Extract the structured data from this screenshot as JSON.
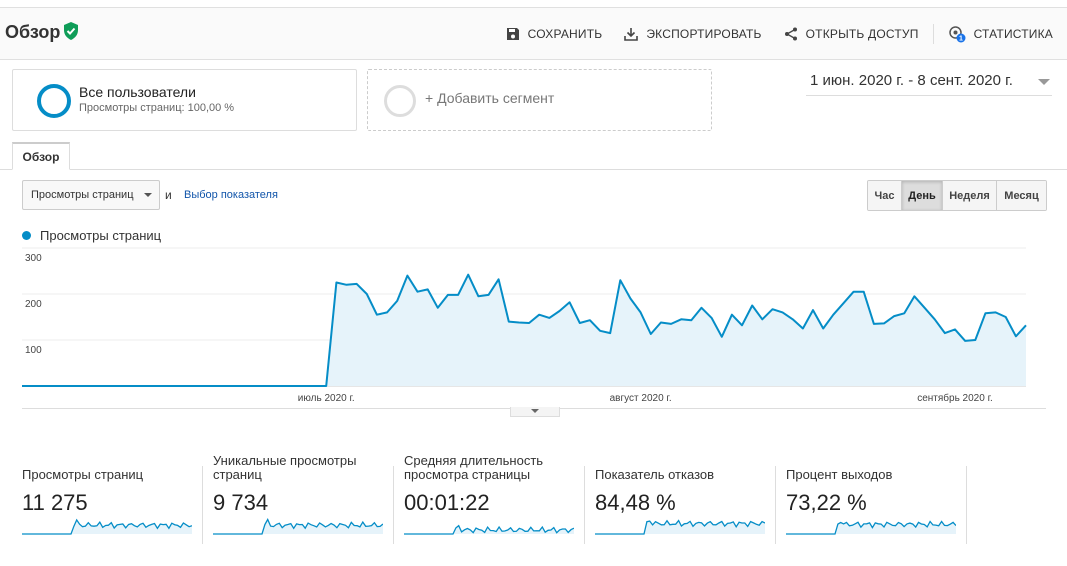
{
  "header": {
    "title": "Обзор",
    "actions": {
      "save": "СОХРАНИТЬ",
      "export": "ЭКСПОРТИРОВАТЬ",
      "share": "ОТКРЫТЬ ДОСТУП",
      "insights": "СТАТИСТИКА",
      "insights_badge": "1"
    }
  },
  "segments": {
    "active": {
      "name": "Все пользователи",
      "subtitle": "Просмотры страниц: 100,00 %"
    },
    "add": "+ Добавить сегмент"
  },
  "date_range": "1 июн. 2020 г. - 8 сент. 2020 г.",
  "tabs": [
    {
      "label": "Обзор",
      "active": true
    }
  ],
  "controls": {
    "metric_select": "Просмотры страниц",
    "and": "и",
    "choose_metric": "Выбор показателя",
    "granularity": [
      {
        "label": "Час",
        "active": false
      },
      {
        "label": "День",
        "active": true
      },
      {
        "label": "Неделя",
        "active": false
      },
      {
        "label": "Месяц",
        "active": false
      }
    ]
  },
  "colors": {
    "accent": "#058dc7",
    "fill": "#e6f3fa",
    "link": "#1155aa",
    "verified": "#0f9d58"
  },
  "chart_data": {
    "type": "area",
    "legend": "Просмотры страниц",
    "ylim": [
      0,
      300
    ],
    "yticks": [
      "300",
      "200",
      "100"
    ],
    "xticks": [
      {
        "label": "июль 2020 г.",
        "index": 30
      },
      {
        "label": "август 2020 г.",
        "index": 61
      },
      {
        "label": "сентябрь 2020 г.",
        "index": 92
      }
    ],
    "x_start": "2020-06-01",
    "x_end": "2020-09-08",
    "values": [
      0,
      0,
      0,
      0,
      0,
      0,
      0,
      0,
      0,
      0,
      0,
      0,
      0,
      0,
      0,
      0,
      0,
      0,
      0,
      0,
      0,
      0,
      0,
      0,
      0,
      0,
      0,
      0,
      0,
      0,
      0,
      225,
      220,
      222,
      200,
      155,
      160,
      185,
      240,
      205,
      210,
      170,
      198,
      198,
      242,
      195,
      198,
      232,
      140,
      138,
      137,
      155,
      148,
      163,
      182,
      137,
      143,
      120,
      115,
      230,
      190,
      160,
      113,
      138,
      135,
      145,
      143,
      170,
      148,
      107,
      155,
      132,
      175,
      145,
      167,
      160,
      145,
      125,
      165,
      125,
      155,
      180,
      205,
      205,
      135,
      136,
      152,
      158,
      195,
      170,
      145,
      115,
      123,
      98,
      100,
      158,
      160,
      150,
      108,
      132
    ]
  },
  "stats": [
    {
      "label": "Просмотры страниц",
      "value": "11 275"
    },
    {
      "label": "Уникальные просмотры страниц",
      "value": "9 734"
    },
    {
      "label": "Средняя длительность просмотра страницы",
      "value": "00:01:22"
    },
    {
      "label": "Показатель отказов",
      "value": "84,48 %"
    },
    {
      "label": "Процент выходов",
      "value": "73,22 %"
    }
  ]
}
